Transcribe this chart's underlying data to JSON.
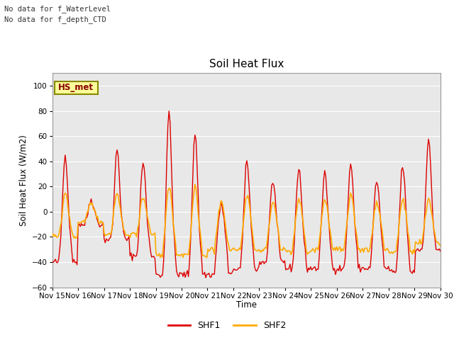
{
  "title": "Soil Heat Flux",
  "ylabel": "Soil Heat Flux (W/m2)",
  "xlabel": "Time",
  "ylim": [
    -60,
    110
  ],
  "yticks": [
    -60,
    -40,
    -20,
    0,
    20,
    40,
    60,
    80,
    100
  ],
  "fig_bg_color": "#ffffff",
  "plot_bg_color": "#e8e8e8",
  "shf1_color": "#dd0000",
  "shf2_color": "#ffaa00",
  "annotation_text_line1": "No data for f_WaterLevel",
  "annotation_text_line2": "No data for f_depth_CTD",
  "box_label": "HS_met",
  "box_color": "#ffff99",
  "box_border": "#888800",
  "grid_color": "#ffffff",
  "xticklabels": [
    "Nov 15",
    "Nov 16",
    "Nov 17",
    "Nov 18",
    "Nov 19",
    "Nov 20",
    "Nov 21",
    "Nov 22",
    "Nov 23",
    "Nov 24",
    "Nov 25",
    "Nov 26",
    "Nov 27",
    "Nov 28",
    "Nov 29",
    "Nov 30"
  ]
}
